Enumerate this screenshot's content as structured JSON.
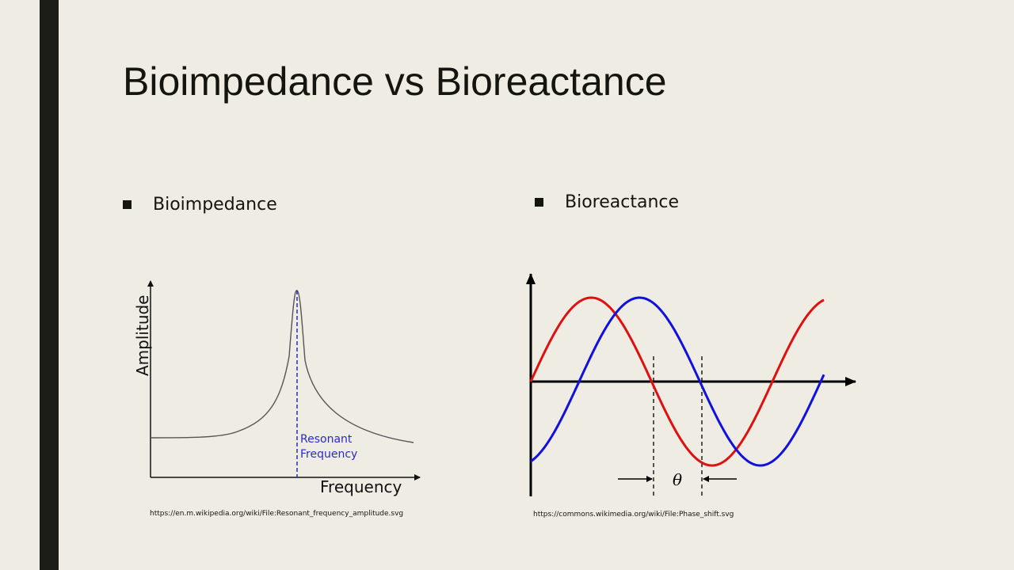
{
  "slide": {
    "title": "Bioimpedance vs Bioreactance"
  },
  "bullets": [
    {
      "label": "Bioimpedance"
    },
    {
      "label": "Bioreactance"
    }
  ],
  "resonance_figure": {
    "axis_y_label": "Amplitude",
    "axis_x_label": "Frequency",
    "annotation_line1": "Resonant",
    "annotation_line2": "Frequency",
    "curve_color": "#555555",
    "annotation_color": "#2b2bc8",
    "source": "https://en.m.wikipedia.org/wiki/File:Resonant_frequency_amplitude.svg"
  },
  "phase_figure": {
    "phase_symbol": "θ",
    "wave1_color": "#dd1111",
    "wave2_color": "#1111dd",
    "source": "https://commons.wikimedia.org/wiki/File:Phase_shift.svg"
  },
  "colors": {
    "background": "#efece3",
    "accent_bar": "#1c1d16",
    "text": "#15150f"
  }
}
